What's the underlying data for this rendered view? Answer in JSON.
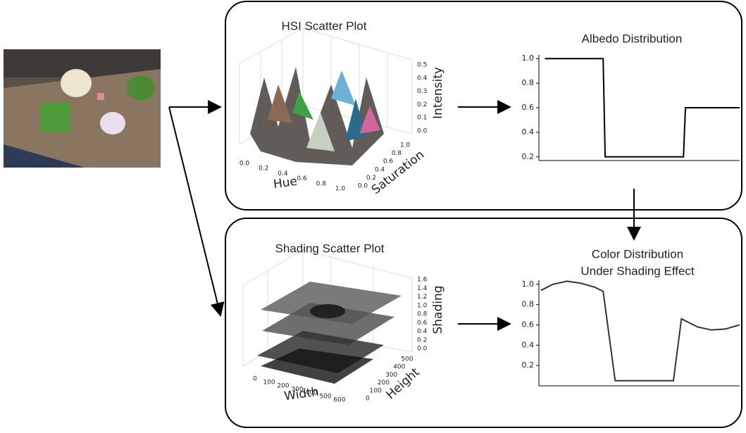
{
  "hsi_plot": {
    "title": "HSI Scatter Plot",
    "x_label": "Hue",
    "y_label": "Saturation",
    "z_label": "Intensity",
    "x_ticks": [
      "0.0",
      "0.2",
      "0.4",
      "0.6",
      "0.8",
      "1.0"
    ],
    "y_ticks": [
      "0.0",
      "0.2",
      "0.4",
      "0.6",
      "0.8",
      "1.0"
    ],
    "z_ticks": [
      "0.0",
      "0.1",
      "0.2",
      "0.3",
      "0.4",
      "0.5"
    ]
  },
  "albedo_chart": {
    "type": "line",
    "title": [
      "Albedo Distribution"
    ],
    "x": [
      0.03,
      0.32,
      0.33,
      0.72,
      0.73,
      1.0
    ],
    "values": [
      1.0,
      1.0,
      0.2,
      0.2,
      0.6,
      0.6
    ],
    "xlim": [
      0,
      1
    ],
    "ylim": [
      0.17,
      1.03
    ],
    "yticks": [
      0.2,
      0.4,
      0.6,
      0.8,
      {
        "value": 1.0,
        "label": "1.0"
      }
    ],
    "color": "#000000"
  },
  "shading_plot": {
    "title": "Shading Scatter Plot",
    "x_label": "Width",
    "y_label": "Height",
    "z_label": "Shading",
    "x_ticks": [
      "0",
      "100",
      "200",
      "300",
      "400",
      "500",
      "600"
    ],
    "y_ticks": [
      "0",
      "100",
      "200",
      "300",
      "400",
      "500"
    ],
    "z_ticks": [
      "0.0",
      "0.2",
      "0.4",
      "0.6",
      "0.8",
      "1.0",
      "1.2",
      "1.4",
      "1.6"
    ]
  },
  "color_chart": {
    "type": "line",
    "title": [
      "Color Distribution",
      "Under Shading Effect"
    ],
    "x": [
      0.01,
      0.07,
      0.14,
      0.21,
      0.28,
      0.32,
      0.38,
      0.67,
      0.71,
      0.79,
      0.86,
      0.93,
      1.0
    ],
    "values": [
      0.94,
      1.0,
      1.03,
      1.01,
      0.97,
      0.93,
      0.05,
      0.05,
      0.66,
      0.58,
      0.55,
      0.56,
      0.6
    ],
    "xlim": [
      0,
      1
    ],
    "ylim": [
      0.0,
      1.04
    ],
    "yticks": [
      0.2,
      0.4,
      0.6,
      0.8,
      {
        "value": 1.0,
        "label": "1.0"
      }
    ],
    "color": "#333333"
  }
}
